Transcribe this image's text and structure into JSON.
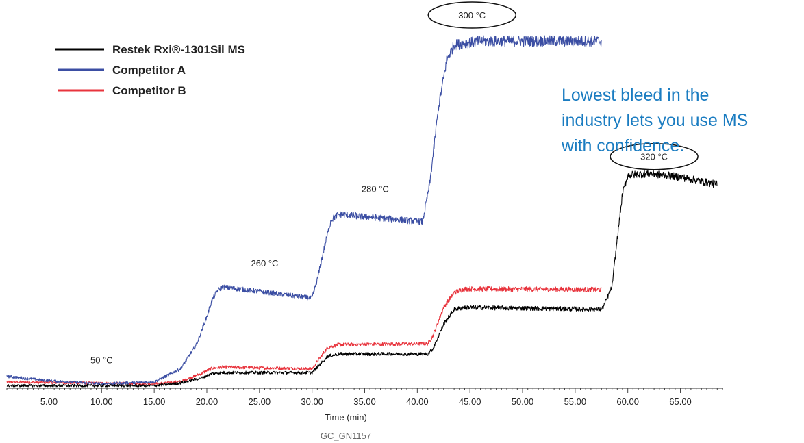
{
  "chart_data": {
    "type": "line",
    "xlabel": "Time (min)",
    "ylabel": "",
    "xlim": [
      1.0,
      69.0
    ],
    "ylim": [
      0,
      100
    ],
    "y_axis_shown": false,
    "grid": false,
    "legend_position": "top-left",
    "x_ticks": [
      "5.00",
      "10.00",
      "15.00",
      "20.00",
      "25.00",
      "30.00",
      "35.00",
      "40.00",
      "45.00",
      "50.00",
      "55.00",
      "60.00",
      "65.00"
    ],
    "x_tick_values": [
      5,
      10,
      15,
      20,
      25,
      30,
      35,
      40,
      45,
      50,
      55,
      60,
      65
    ],
    "series": [
      {
        "name": "Restek Rxi®-1301Sil MS",
        "color": "#000000",
        "x": [
          1.0,
          15.0,
          17.5,
          19.5,
          20.5,
          21.5,
          30.0,
          30.5,
          31.5,
          32.5,
          41.0,
          41.5,
          42.5,
          43.5,
          44.5,
          57.5,
          57.6,
          58.5,
          59.0,
          59.5,
          60.0,
          62.0,
          65.0,
          68.5
        ],
        "y": [
          0.5,
          0.5,
          1.2,
          2.6,
          3.8,
          4.0,
          4.0,
          5.5,
          8.4,
          9.0,
          9.0,
          10.5,
          17.0,
          21.0,
          21.5,
          21.0,
          21.3,
          27.0,
          40.0,
          52.0,
          57.0,
          57.5,
          56.5,
          54.5
        ]
      },
      {
        "name": "Competitor A",
        "color": "#3b4ea3",
        "x": [
          1.0,
          5.0,
          10.0,
          15.0,
          17.5,
          19.0,
          20.0,
          20.5,
          21.0,
          21.5,
          23.0,
          30.0,
          30.5,
          31.2,
          31.8,
          32.5,
          40.5,
          41.2,
          42.0,
          42.8,
          43.5,
          46.0,
          57.5
        ],
        "y": [
          3.0,
          1.8,
          1.0,
          1.5,
          5.0,
          11.5,
          19.0,
          23.5,
          26.0,
          27.0,
          26.5,
          24.0,
          29.0,
          38.0,
          45.0,
          46.5,
          44.5,
          55.0,
          75.0,
          88.0,
          92.0,
          93.0,
          93.0
        ]
      },
      {
        "name": "Competitor B",
        "color": "#e8343d",
        "x": [
          1.0,
          6.0,
          15.0,
          17.5,
          19.5,
          20.5,
          21.5,
          30.0,
          30.5,
          31.5,
          32.5,
          41.0,
          41.5,
          42.5,
          43.5,
          44.5,
          57.5
        ],
        "y": [
          1.5,
          1.3,
          1.0,
          1.6,
          3.8,
          5.2,
          5.5,
          5.0,
          7.0,
          10.8,
          11.5,
          11.8,
          14.0,
          21.5,
          25.5,
          26.5,
          26.3
        ]
      }
    ],
    "annotations": [
      {
        "text": "50 °C",
        "x": 10.0,
        "y": 6.5
      },
      {
        "text": "260 °C",
        "x": 25.5,
        "y": 32.5
      },
      {
        "text": "280 °C",
        "x": 36.0,
        "y": 52.5
      }
    ],
    "circled_annotations": [
      {
        "text": "300 °C",
        "x": 45.2,
        "y": 100
      },
      {
        "text": "320 °C",
        "x": 62.5,
        "y": 62.0
      }
    ],
    "footer_code": "GC_GN1157",
    "callout": [
      "Lowest bleed in the",
      "industry lets you use MS",
      "with confidence."
    ],
    "callout_color": "#1a7cc1"
  }
}
